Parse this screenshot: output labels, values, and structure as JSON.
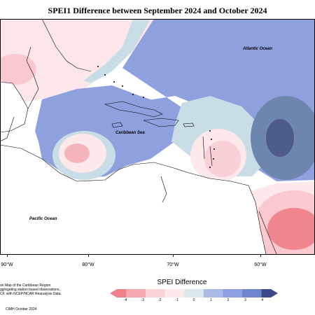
{
  "title": "SPEI1 Difference between September 2024 and October 2024",
  "labels": {
    "atlantic": "Atlantic Ocean",
    "caribbean": "Caribbean Sea",
    "pacific": "Pacific Ocean"
  },
  "longitudes": [
    "90°W",
    "80°W",
    "70°W",
    "60°W"
  ],
  "footnote_lines": [
    "on Map of the Caribbean Region",
    "ggregating station based observations,",
    "CF, with NCEP/NCAR Reanalysis Data."
  ],
  "credit": "CIMH October 2024",
  "legend": {
    "title": "SPEI Difference",
    "ticks": [
      "-4",
      "-3",
      "-2",
      "-1",
      "0",
      "1",
      "2",
      "3",
      "4"
    ],
    "colors": [
      "#f0808a",
      "#f5a9b0",
      "#fbd3d6",
      "#fde9ea",
      "#dbe9ec",
      "#aab9e6",
      "#8c9fdf",
      "#6f84cf",
      "#3c4a88"
    ]
  },
  "colors": {
    "positive_blue": "#8fa0df",
    "light_blue": "#c8dde5",
    "pink": "#f9d0d6",
    "light_pink": "#fde8ea",
    "dark_blue": "#4c5a8c",
    "mid_blue_grey": "#6d86ad",
    "red": "#f0868e"
  }
}
